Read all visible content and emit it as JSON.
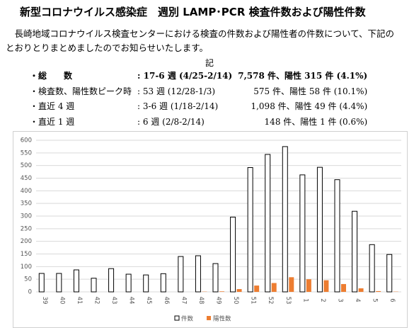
{
  "header": {
    "title": "新型コロナウイルス感染症　週別 LAMP･PCR 検査件数および陽性件数"
  },
  "intro": "長崎地域コロナウイルス検査センターにおける検査の件数および陽性者の件数について、下記のとおりとりまとめましたのでお知らせいたします。",
  "note": "記",
  "summary": {
    "rows": [
      [
        "・総　　数",
        ": 17-6 週 (4/25-2/14)",
        "7,578 件、陽性 315 件 (4.1%)"
      ],
      [
        "・検査数、陽性数ピーク時",
        ": 53 週 (12/28-1/3)",
        "575 件、陽性 58 件 (10.1%)"
      ],
      [
        "・直近 4 週",
        ": 3-6 週 (1/18-2/14)",
        "1,098 件、陽性 49 件 (4.4%)"
      ],
      [
        "・直近 1 週",
        ": 6 週 (2/8-2/14)",
        "148 件、陽性 1 件 (0.6%)"
      ]
    ]
  },
  "chart_data": {
    "type": "bar",
    "categories": [
      "39",
      "40",
      "41",
      "42",
      "43",
      "44",
      "45",
      "46",
      "47",
      "48",
      "49",
      "50",
      "51",
      "52",
      "53",
      "1",
      "2",
      "3",
      "4",
      "5",
      "6"
    ],
    "series": [
      {
        "name": "件数",
        "color": "#ffffff",
        "values": [
          73,
          73,
          87,
          54,
          92,
          70,
          67,
          72,
          140,
          143,
          112,
          296,
          492,
          544,
          575,
          463,
          493,
          444,
          319,
          187,
          148
        ]
      },
      {
        "name": "陽性数",
        "color": "#ed7d31",
        "values": [
          0,
          0,
          0,
          0,
          0,
          0,
          0,
          0,
          0,
          1,
          2,
          11,
          25,
          35,
          58,
          50,
          46,
          31,
          14,
          3,
          1
        ]
      }
    ],
    "ylim": [
      0,
      600
    ],
    "yticks": [
      0,
      50,
      100,
      150,
      200,
      250,
      300,
      350,
      400,
      450,
      500,
      550,
      600
    ],
    "grid": true,
    "legend": "bottom"
  }
}
